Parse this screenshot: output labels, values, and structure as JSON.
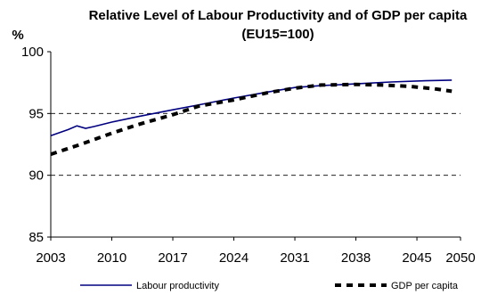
{
  "chart_data": {
    "type": "line",
    "title": "Relative Level of Labour Productivity and of GDP per capita",
    "subtitle": "(EU15=100)",
    "ylabel": "%",
    "xlabel": "",
    "xlim": [
      2003,
      2050
    ],
    "ylim": [
      85,
      100
    ],
    "x_ticks": [
      "2003",
      "2010",
      "2017",
      "2024",
      "2031",
      "2038",
      "2045",
      "2050"
    ],
    "y_ticks": [
      "85",
      "90",
      "95",
      "100"
    ],
    "gridlines": [
      90,
      95
    ],
    "grid": "horizontal dashed at 90 and 95",
    "legend_position": "bottom",
    "series": [
      {
        "name": "Labour productivity",
        "style": "solid",
        "color": "#000080",
        "points": [
          [
            2003,
            93.2
          ],
          [
            2005,
            93.7
          ],
          [
            2006,
            94.0
          ],
          [
            2007,
            93.8
          ],
          [
            2008,
            93.95
          ],
          [
            2010,
            94.3
          ],
          [
            2013,
            94.75
          ],
          [
            2017,
            95.3
          ],
          [
            2020,
            95.7
          ],
          [
            2024,
            96.25
          ],
          [
            2028,
            96.75
          ],
          [
            2031,
            97.1
          ],
          [
            2034,
            97.25
          ],
          [
            2038,
            97.4
          ],
          [
            2042,
            97.55
          ],
          [
            2046,
            97.65
          ],
          [
            2049,
            97.7
          ]
        ]
      },
      {
        "name": "GDP per capita",
        "style": "dashed",
        "color": "#000000",
        "points": [
          [
            2003,
            91.7
          ],
          [
            2006,
            92.4
          ],
          [
            2010,
            93.4
          ],
          [
            2013,
            94.1
          ],
          [
            2017,
            94.9
          ],
          [
            2020,
            95.6
          ],
          [
            2024,
            96.1
          ],
          [
            2028,
            96.7
          ],
          [
            2031,
            97.05
          ],
          [
            2034,
            97.3
          ],
          [
            2038,
            97.35
          ],
          [
            2041,
            97.3
          ],
          [
            2044,
            97.2
          ],
          [
            2047,
            97.0
          ],
          [
            2049,
            96.8
          ]
        ]
      }
    ]
  }
}
